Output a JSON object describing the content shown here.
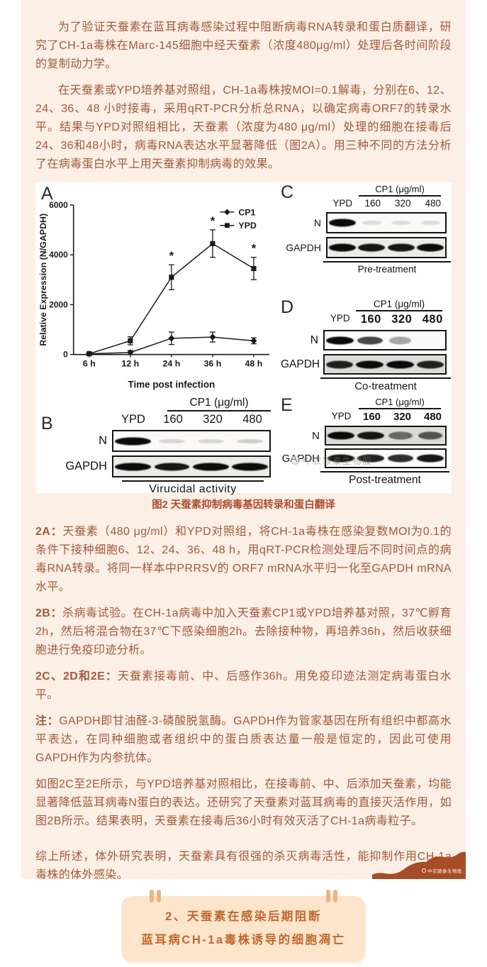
{
  "article": {
    "paragraphs": {
      "p1": "为了验证天蚕素在蓝耳病毒感染过程中阻断病毒RNA转录和蛋白质翻译，研究了CH-1a毒株在Marc-145细胞中经天蚕素（浓度480μg/ml）处理后各时间阶段的复制动力学。",
      "p2": "在天蚕素或YPD培养基对照组，CH-1a毒株按MOI=0.1解毒，分别在6、12、24、36、48 小时接毒，采用qRT-PCR分析总RNA，以确定病毒ORF7的转录水平。结果与YPD对照组相比，天蚕素（浓度为480 μg/ml）处理的细胞在接毒后24、36和48小时，病毒RNA表达水平显著降低（图2A）。用三种不同的方法分析了在病毒蛋白水平上用天蚕素抑制病毒的效果。",
      "p3": "如图2C至2E所示，与YPD培养基对照相比，在接毒前、中、后添加天蚕素，均能显著降低蓝耳病毒N蛋白的表达。还研究了天蚕素对蓝耳病毒的直接灭活作用，如图2B所示。结果表明，天蚕素在接毒后36小时有效灭活了CH-1a病毒粒子。",
      "p4": "综上所述，体外研究表明，天蚕素具有很强的杀灭病毒活性，能抑制作用CH-1a毒株的体外感染。"
    },
    "notes": {
      "n2a": {
        "lead": "2A：",
        "text": "天蚕素（480 μg/ml）和YPD对照组，将CH-1a毒株在感染复数MOI为0.1的条件下接种细胞6、12、24、36、48 h，用qRT-PCR检测处理后不同时间点的病毒RNA转录。将同一样本中PRRSV的 ORF7 mRNA水平归一化至GAPDH mRNA水平。"
      },
      "n2b": {
        "lead": "2B：",
        "text": "杀病毒试验。在CH-1a病毒中加入天蚕素CP1或YPD培养基对照，37℃孵育2h，然后将混合物在37℃下感染细胞2h。去除接种物，再培养36h，然后收获细胞进行免疫印迹分析。"
      },
      "n2cde": {
        "lead": "2C、2D和2E：",
        "text": "天蚕素接毒前、中、后感作36h。用免疫印迹法测定病毒蛋白水平。"
      },
      "gapdh": {
        "lead": "注：",
        "text": "GAPDH即甘油醛-3-磷酸脱氢酶。GAPDH作为管家基因在所有组织中都高水平表达，在同种细胞或者组织中的蛋白质表达量一般是恒定的，因此可使用GAPDH作为内参抗体。"
      }
    }
  },
  "figure": {
    "caption": "图2 天蚕素抑制病毒基因转录和蛋白翻译",
    "watermark": "中农颖泰生物股",
    "logo_text": "中农颖泰生物股",
    "panels": {
      "A": {
        "label": "A"
      },
      "B": {
        "label": "B",
        "header": "CP1 (μg/ml)",
        "lanes": [
          "YPD",
          "160",
          "320",
          "480"
        ],
        "rows": [
          "N",
          "GAPDH"
        ],
        "caption": "Virucidal activity",
        "bands": {
          "N": [
            1,
            0.15,
            0.15,
            0.18
          ],
          "GAPDH": [
            1,
            0.95,
            1,
            1
          ]
        }
      },
      "C": {
        "label": "C",
        "header": "CP1 (μg/ml)",
        "lanes": [
          "YPD",
          "160",
          "320",
          "480"
        ],
        "rows": [
          "N",
          "GAPDH"
        ],
        "caption": "Pre-treatment",
        "bands": {
          "N": [
            1,
            0.08,
            0.08,
            0.09
          ],
          "GAPDH": [
            1,
            0.95,
            0.95,
            1
          ]
        }
      },
      "D": {
        "label": "D",
        "header": "CP1 (μg/ml)",
        "lanes": [
          "YPD",
          "160",
          "320",
          "480"
        ],
        "rows": [
          "N",
          "GAPDH"
        ],
        "caption": "Co-treatment",
        "bands": {
          "N": [
            1,
            0.75,
            0.35,
            0
          ],
          "GAPDH": [
            0.9,
            1,
            1,
            0.9
          ]
        }
      },
      "E": {
        "label": "E",
        "header": "CP1 (μg/ml)",
        "lanes": [
          "YPD",
          "160",
          "320",
          "480"
        ],
        "rows": [
          "N",
          "GAPDH"
        ],
        "caption": "Post-treatment",
        "bands": {
          "N": [
            1,
            0.95,
            0.55,
            0.65
          ],
          "GAPDH": [
            0.95,
            0.9,
            0.85,
            0.95
          ]
        }
      }
    }
  },
  "chart_data": {
    "type": "line",
    "title": "",
    "xlabel": "Time post infection",
    "ylabel": "Relative Expression (N/GAPDH)",
    "categories": [
      "6 h",
      "12 h",
      "24 h",
      "36 h",
      "48 h"
    ],
    "ylim": [
      0,
      6000
    ],
    "yticks": [
      0,
      2000,
      4000,
      6000
    ],
    "grid": false,
    "legend_position": "top-right",
    "series": [
      {
        "name": "CP1",
        "marker": "diamond",
        "values": [
          30,
          80,
          650,
          700,
          550
        ],
        "errors": [
          40,
          80,
          250,
          200,
          120
        ],
        "significant": [
          false,
          false,
          false,
          false,
          false
        ]
      },
      {
        "name": "YPD",
        "marker": "square",
        "values": [
          30,
          550,
          3100,
          4450,
          3450
        ],
        "errors": [
          60,
          160,
          500,
          550,
          450
        ],
        "significant": [
          false,
          false,
          true,
          true,
          true
        ]
      }
    ]
  },
  "banner": {
    "line1": "2、天蚕素在感染后期阻断",
    "line2": "蓝耳病CH-1a毒株诱导的细胞凋亡"
  },
  "colors": {
    "card_bg": "#fcefe5",
    "body_text": "#a05a3c",
    "caption_text": "#ad4d30",
    "banner_bg": "#fde5cc",
    "banner_text": "#c0692e",
    "quote_bars": "#f0b27e",
    "wave_brown": "#a64c26"
  }
}
